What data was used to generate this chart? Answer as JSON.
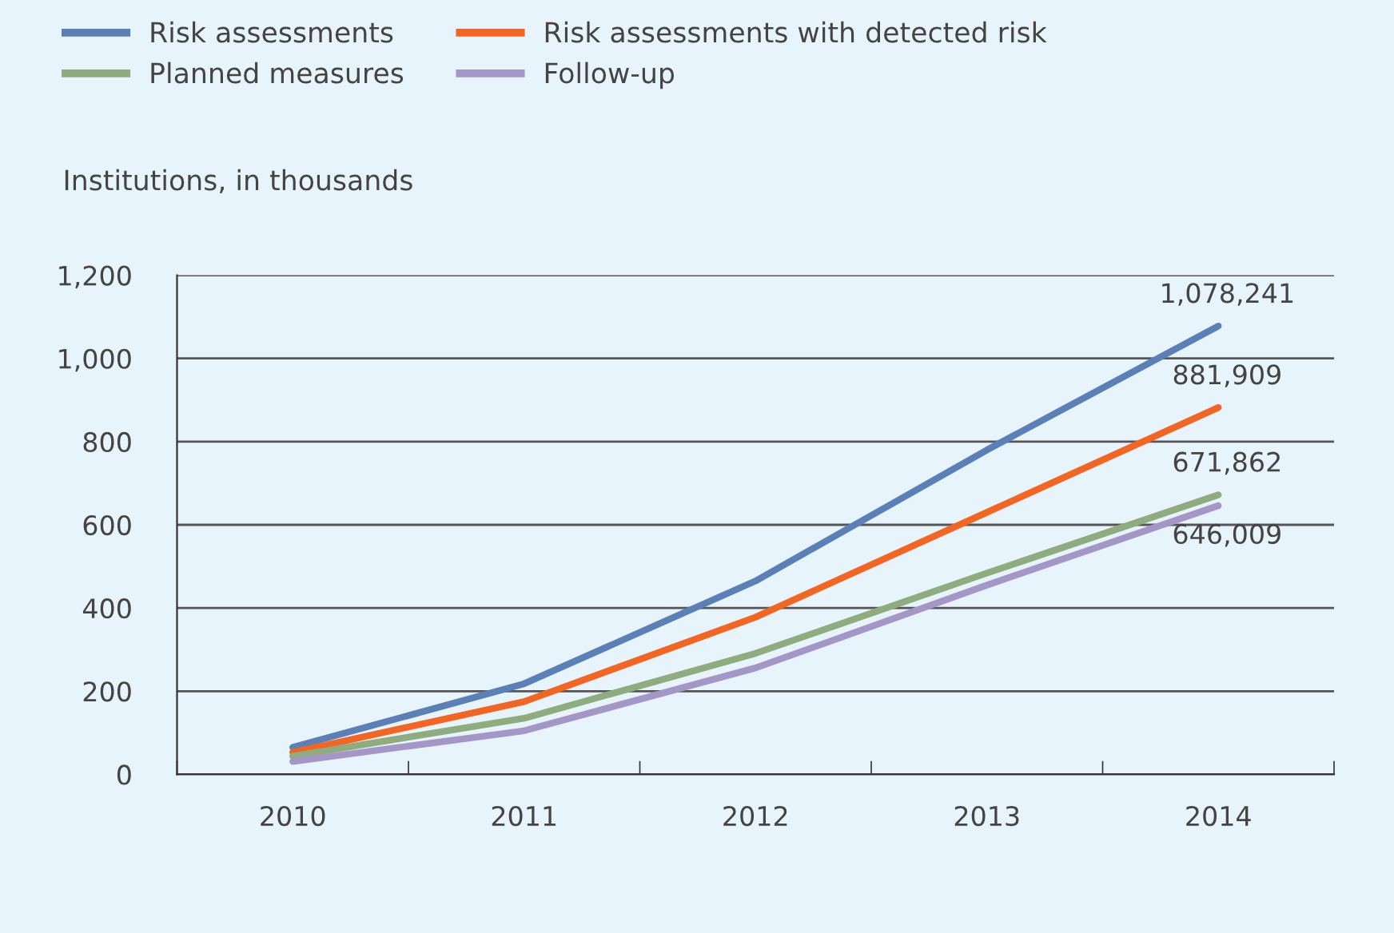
{
  "chart_data": {
    "type": "line",
    "ylabel": "Institutions, in thousands",
    "categories": [
      "2010",
      "2011",
      "2012",
      "2013",
      "2014"
    ],
    "series": [
      {
        "name": "Risk assessments",
        "color": "#5b80b8",
        "values": [
          65,
          218,
          465,
          780,
          1078
        ]
      },
      {
        "name": "Risk assessments with detected risk",
        "color": "#f26522",
        "values": [
          53,
          175,
          378,
          630,
          882
        ]
      },
      {
        "name": "Planned measures",
        "color": "#8fac7e",
        "values": [
          44,
          135,
          291,
          484,
          672
        ]
      },
      {
        "name": "Follow-up",
        "color": "#a596c8",
        "values": [
          31,
          105,
          256,
          455,
          646
        ]
      }
    ],
    "annotations": [
      {
        "text": "1,078,241",
        "x": "2014",
        "y": 1078
      },
      {
        "text": "881,909",
        "x": "2014",
        "y": 882
      },
      {
        "text": "671,862",
        "x": "2014",
        "y": 672
      },
      {
        "text": "646,009",
        "x": "2014",
        "y": 646
      }
    ],
    "ylim": [
      0,
      1200
    ],
    "yticks": [
      {
        "value": 0,
        "label": "0"
      },
      {
        "value": 200,
        "label": "200"
      },
      {
        "value": 400,
        "label": "400"
      },
      {
        "value": 600,
        "label": "600"
      },
      {
        "value": 800,
        "label": "800"
      },
      {
        "value": 1000,
        "label": "1,000"
      },
      {
        "value": 1200,
        "label": "1,200"
      }
    ],
    "grid": "y",
    "legend": "top left",
    "marker": "none",
    "line_style": "solid"
  }
}
